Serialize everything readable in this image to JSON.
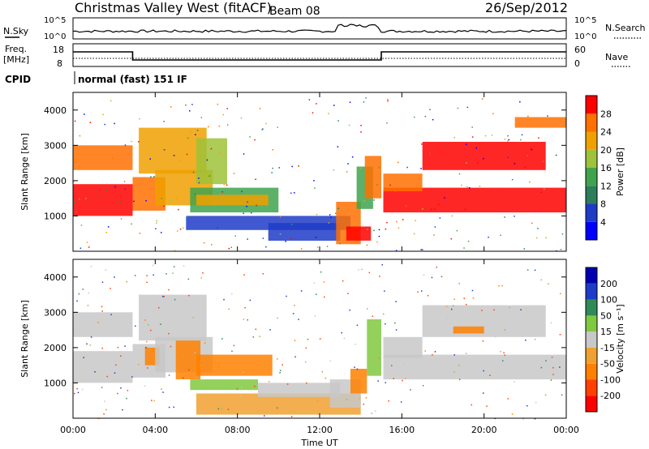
{
  "header": {
    "station": "Christmas Valley West (fitACF)",
    "beam": "Beam 08",
    "date": "26/Sep/2012"
  },
  "noise_panel": {
    "left_label": "N.Sky",
    "right_label": "N.Search",
    "tick_top": "10^5",
    "tick_bottom": "10^0"
  },
  "freq_panel": {
    "left_label_line1": "Freq.",
    "left_label_line2": "[MHz]",
    "left_ticks": [
      "18",
      "8"
    ],
    "right_label": "Nave",
    "right_ticks": [
      "60",
      "0"
    ]
  },
  "cpid": {
    "label": "CPID",
    "mode": "normal (fast) 151 IF"
  },
  "colors": {
    "power_scale": [
      "#0000ff",
      "#1e3cc8",
      "#2e7d5a",
      "#3fa34d",
      "#9ec23a",
      "#f0a000",
      "#ff7000",
      "#ff0000"
    ],
    "velocity_scale": [
      "#ff0000",
      "#ff4000",
      "#ff8000",
      "#f0a030",
      "#c8c8c8",
      "#80c840",
      "#2e8b57",
      "#1e3cc8",
      "#0000b0"
    ]
  },
  "chart_data": [
    {
      "type": "heatmap",
      "name": "power",
      "ylabel": "Slant Range [km]",
      "yticks": [
        "1000",
        "2000",
        "3000",
        "4000"
      ],
      "ylim": [
        0,
        4500
      ],
      "colorbar_label": "Power [dB]",
      "colorbar_ticks": [
        "4",
        "8",
        "12",
        "16",
        "20",
        "24",
        "28"
      ],
      "colorbar_range": [
        0,
        32
      ],
      "bands": [
        {
          "t0": 0.0,
          "t1": 2.9,
          "r0": 1000,
          "r1": 1900,
          "value": 28
        },
        {
          "t0": 0.0,
          "t1": 2.9,
          "r0": 2300,
          "r1": 3000,
          "value": 26
        },
        {
          "t0": 2.9,
          "t1": 4.5,
          "r0": 1150,
          "r1": 2100,
          "value": 25
        },
        {
          "t0": 3.2,
          "t1": 6.5,
          "r0": 2200,
          "r1": 3500,
          "value": 22
        },
        {
          "t0": 4.0,
          "t1": 6.8,
          "r0": 1300,
          "r1": 2300,
          "value": 20
        },
        {
          "t0": 6.0,
          "t1": 7.5,
          "r0": 1900,
          "r1": 3200,
          "value": 18
        },
        {
          "t0": 5.7,
          "t1": 10.0,
          "r0": 1100,
          "r1": 1800,
          "value": 14
        },
        {
          "t0": 6.0,
          "t1": 9.5,
          "r0": 1300,
          "r1": 1600,
          "value": 22
        },
        {
          "t0": 5.5,
          "t1": 13.5,
          "r0": 600,
          "r1": 1000,
          "value": 6
        },
        {
          "t0": 9.5,
          "t1": 13.0,
          "r0": 300,
          "r1": 800,
          "value": 6
        },
        {
          "t0": 12.8,
          "t1": 14.0,
          "r0": 200,
          "r1": 1400,
          "value": 26
        },
        {
          "t0": 13.3,
          "t1": 14.5,
          "r0": 300,
          "r1": 700,
          "value": 28
        },
        {
          "t0": 13.8,
          "t1": 14.6,
          "r0": 1200,
          "r1": 2400,
          "value": 12
        },
        {
          "t0": 14.2,
          "t1": 15.0,
          "r0": 1500,
          "r1": 2700,
          "value": 26
        },
        {
          "t0": 15.1,
          "t1": 24.0,
          "r0": 1100,
          "r1": 1800,
          "value": 29
        },
        {
          "t0": 15.1,
          "t1": 17.0,
          "r0": 1700,
          "r1": 2200,
          "value": 27
        },
        {
          "t0": 17.0,
          "t1": 23.0,
          "r0": 2300,
          "r1": 3100,
          "value": 28
        },
        {
          "t0": 21.5,
          "t1": 24.0,
          "r0": 3500,
          "r1": 3800,
          "value": 26
        }
      ]
    },
    {
      "type": "heatmap",
      "name": "velocity",
      "ylabel": "Slant Range [km]",
      "yticks": [
        "1000",
        "2000",
        "3000",
        "4000"
      ],
      "ylim": [
        0,
        4500
      ],
      "colorbar_label": "Velocity [m s⁻¹]",
      "colorbar_ticks": [
        "200",
        "100",
        "50",
        "15",
        "-15",
        "-50",
        "-100",
        "-200"
      ],
      "colorbar_range": [
        -250,
        250
      ],
      "bands": [
        {
          "t0": 0.0,
          "t1": 2.9,
          "r0": 1000,
          "r1": 1900,
          "value": 0
        },
        {
          "t0": 0.0,
          "t1": 2.9,
          "r0": 2300,
          "r1": 3000,
          "value": 0
        },
        {
          "t0": 2.9,
          "t1": 4.5,
          "r0": 1150,
          "r1": 2100,
          "value": 0
        },
        {
          "t0": 3.5,
          "t1": 4.2,
          "r0": 1500,
          "r1": 2000,
          "value": -60
        },
        {
          "t0": 3.2,
          "t1": 6.5,
          "r0": 2200,
          "r1": 3500,
          "value": 0
        },
        {
          "t0": 4.0,
          "t1": 6.8,
          "r0": 1300,
          "r1": 2300,
          "value": 0
        },
        {
          "t0": 5.0,
          "t1": 6.2,
          "r0": 1100,
          "r1": 2200,
          "value": -60
        },
        {
          "t0": 6.0,
          "t1": 9.7,
          "r0": 1200,
          "r1": 1800,
          "value": -60
        },
        {
          "t0": 5.7,
          "t1": 9.0,
          "r0": 800,
          "r1": 1100,
          "value": 40
        },
        {
          "t0": 6.0,
          "t1": 14.0,
          "r0": 100,
          "r1": 700,
          "value": -40
        },
        {
          "t0": 9.0,
          "t1": 13.0,
          "r0": 600,
          "r1": 1000,
          "value": 0
        },
        {
          "t0": 12.5,
          "t1": 14.0,
          "r0": 300,
          "r1": 1100,
          "value": 0
        },
        {
          "t0": 13.5,
          "t1": 14.3,
          "r0": 700,
          "r1": 1400,
          "value": -80
        },
        {
          "t0": 14.3,
          "t1": 15.0,
          "r0": 1200,
          "r1": 2800,
          "value": 40
        },
        {
          "t0": 15.1,
          "t1": 24.0,
          "r0": 1100,
          "r1": 1800,
          "value": 0
        },
        {
          "t0": 15.1,
          "t1": 17.0,
          "r0": 1700,
          "r1": 2300,
          "value": 0
        },
        {
          "t0": 17.0,
          "t1": 23.0,
          "r0": 2300,
          "r1": 3200,
          "value": 0
        },
        {
          "t0": 18.5,
          "t1": 20.0,
          "r0": 2400,
          "r1": 2600,
          "value": -60
        }
      ]
    }
  ],
  "x_axis": {
    "label": "Time UT",
    "ticks": [
      "00:00",
      "04:00",
      "08:00",
      "12:00",
      "16:00",
      "20:00",
      "00:00"
    ],
    "range_hours": [
      0,
      24
    ]
  }
}
